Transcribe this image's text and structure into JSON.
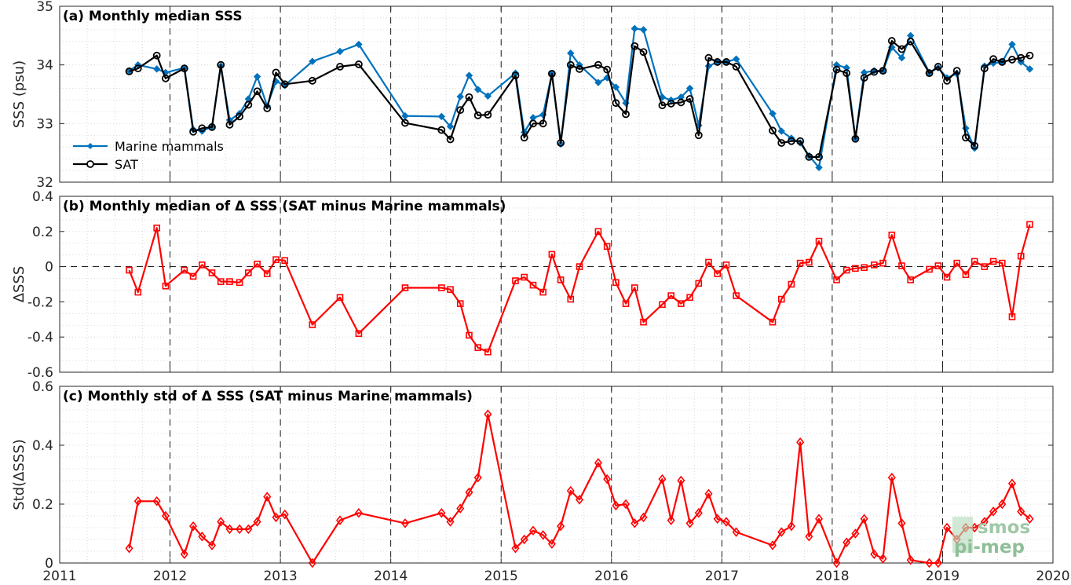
{
  "chart_data": [
    {
      "type": "line",
      "title": "(a) Monthly median SSS",
      "ylabel": "SSS (psu)",
      "xlabel": "",
      "xlim": [
        2011,
        2020
      ],
      "ylim": [
        32,
        35
      ],
      "x_ticks": [
        "2011",
        "2012",
        "2013",
        "2014",
        "2015",
        "2016",
        "2017",
        "2018",
        "2019",
        "2020"
      ],
      "y_ticks": [
        "32",
        "33",
        "34",
        "35"
      ],
      "grid": "dotted minor grid, dashed vertical lines at year boundaries",
      "legend_position": "lower-left",
      "series": [
        {
          "name": "Marine mammals",
          "color": "#0072bd",
          "marker": "diamond-filled",
          "x": [
            2011.63,
            2011.71,
            2011.88,
            2011.96,
            2012.13,
            2012.21,
            2012.29,
            2012.38,
            2012.46,
            2012.54,
            2012.63,
            2012.71,
            2012.79,
            2012.88,
            2012.96,
            2013.04,
            2013.29,
            2013.54,
            2013.71,
            2014.13,
            2014.46,
            2014.54,
            2014.63,
            2014.71,
            2014.79,
            2014.88,
            2015.13,
            2015.21,
            2015.29,
            2015.38,
            2015.46,
            2015.54,
            2015.63,
            2015.71,
            2015.88,
            2015.96,
            2016.04,
            2016.13,
            2016.21,
            2016.29,
            2016.46,
            2016.54,
            2016.63,
            2016.71,
            2016.79,
            2016.88,
            2016.96,
            2017.04,
            2017.13,
            2017.46,
            2017.54,
            2017.63,
            2017.71,
            2017.79,
            2017.88,
            2018.04,
            2018.13,
            2018.21,
            2018.29,
            2018.38,
            2018.46,
            2018.54,
            2018.63,
            2018.71,
            2018.88,
            2018.96,
            2019.04,
            2019.13,
            2019.21,
            2019.29,
            2019.38,
            2019.46,
            2019.54,
            2019.63,
            2019.71,
            2019.79
          ],
          "y": [
            33.9,
            34.0,
            33.93,
            33.87,
            33.95,
            32.9,
            32.87,
            32.95,
            33.98,
            33.06,
            33.17,
            33.42,
            33.8,
            33.3,
            33.72,
            33.65,
            34.06,
            34.23,
            34.35,
            33.13,
            33.12,
            32.95,
            33.46,
            33.82,
            33.58,
            33.47,
            33.86,
            32.85,
            33.1,
            33.15,
            33.85,
            32.65,
            34.2,
            34.0,
            33.7,
            33.78,
            33.62,
            33.35,
            34.62,
            34.6,
            33.45,
            33.4,
            33.45,
            33.6,
            32.97,
            33.98,
            34.05,
            34.05,
            34.1,
            33.17,
            32.87,
            32.75,
            32.67,
            32.45,
            32.25,
            34.0,
            33.95,
            32.75,
            33.87,
            33.9,
            33.9,
            34.3,
            34.12,
            34.5,
            33.87,
            33.95,
            33.78,
            33.85,
            32.92,
            32.58,
            33.98,
            34.03,
            34.05,
            34.35,
            34.05,
            33.93
          ]
        },
        {
          "name": "SAT",
          "color": "#000000",
          "marker": "circle-open",
          "x": [
            2011.63,
            2011.71,
            2011.88,
            2011.96,
            2012.13,
            2012.21,
            2012.29,
            2012.38,
            2012.46,
            2012.54,
            2012.63,
            2012.71,
            2012.79,
            2012.88,
            2012.96,
            2013.04,
            2013.29,
            2013.54,
            2013.71,
            2014.13,
            2014.46,
            2014.54,
            2014.63,
            2014.71,
            2014.79,
            2014.88,
            2015.13,
            2015.21,
            2015.29,
            2015.38,
            2015.46,
            2015.54,
            2015.63,
            2015.71,
            2015.88,
            2015.96,
            2016.04,
            2016.13,
            2016.21,
            2016.29,
            2016.46,
            2016.54,
            2016.63,
            2016.71,
            2016.79,
            2016.88,
            2016.96,
            2017.04,
            2017.13,
            2017.46,
            2017.54,
            2017.63,
            2017.71,
            2017.79,
            2017.88,
            2018.04,
            2018.13,
            2018.21,
            2018.29,
            2018.38,
            2018.46,
            2018.54,
            2018.63,
            2018.71,
            2018.88,
            2018.96,
            2019.04,
            2019.13,
            2019.21,
            2019.29,
            2019.38,
            2019.46,
            2019.54,
            2019.63,
            2019.71,
            2019.79
          ],
          "y": [
            33.89,
            33.94,
            34.16,
            33.77,
            33.94,
            32.86,
            32.92,
            32.94,
            34.0,
            32.98,
            33.12,
            33.32,
            33.55,
            33.26,
            33.87,
            33.67,
            33.73,
            33.97,
            34.01,
            33.01,
            32.89,
            32.73,
            33.23,
            33.45,
            33.14,
            33.15,
            33.82,
            32.76,
            33.0,
            33.0,
            33.85,
            32.67,
            34.0,
            33.93,
            34.0,
            33.92,
            33.35,
            33.16,
            34.32,
            34.22,
            33.31,
            33.34,
            33.36,
            33.42,
            32.8,
            34.12,
            34.05,
            34.05,
            33.97,
            32.88,
            32.67,
            32.7,
            32.7,
            32.43,
            32.43,
            33.92,
            33.86,
            32.74,
            33.78,
            33.88,
            33.9,
            34.41,
            34.27,
            34.4,
            33.86,
            33.97,
            33.73,
            33.9,
            32.76,
            32.62,
            33.94,
            34.1,
            34.05,
            34.09,
            34.12,
            34.16
          ]
        }
      ]
    },
    {
      "type": "line",
      "title": "(b) Monthly median of Δ SSS (SAT minus Marine mammals)",
      "ylabel": "ΔSSS",
      "xlabel": "",
      "xlim": [
        2011,
        2020
      ],
      "ylim": [
        -0.6,
        0.4
      ],
      "y_ticks": [
        "-0.6",
        "-0.4",
        "-0.2",
        "0",
        "0.2",
        "0.4"
      ],
      "reference_line": 0,
      "series": [
        {
          "name": "",
          "color": "#ff0000",
          "marker": "square-open",
          "x": [
            2011.63,
            2011.71,
            2011.88,
            2011.96,
            2012.13,
            2012.21,
            2012.29,
            2012.38,
            2012.46,
            2012.54,
            2012.63,
            2012.71,
            2012.79,
            2012.88,
            2012.96,
            2013.04,
            2013.29,
            2013.54,
            2013.71,
            2014.13,
            2014.46,
            2014.54,
            2014.63,
            2014.71,
            2014.79,
            2014.88,
            2015.13,
            2015.21,
            2015.29,
            2015.38,
            2015.46,
            2015.54,
            2015.63,
            2015.71,
            2015.88,
            2015.96,
            2016.04,
            2016.13,
            2016.21,
            2016.29,
            2016.46,
            2016.54,
            2016.63,
            2016.71,
            2016.79,
            2016.88,
            2016.96,
            2017.04,
            2017.13,
            2017.46,
            2017.54,
            2017.63,
            2017.71,
            2017.79,
            2017.88,
            2018.04,
            2018.13,
            2018.21,
            2018.29,
            2018.38,
            2018.46,
            2018.54,
            2018.63,
            2018.71,
            2018.88,
            2018.96,
            2019.04,
            2019.13,
            2019.21,
            2019.29,
            2019.38,
            2019.46,
            2019.54,
            2019.63,
            2019.71,
            2019.79
          ],
          "y": [
            -0.02,
            -0.145,
            0.22,
            -0.11,
            -0.02,
            -0.055,
            0.01,
            -0.035,
            -0.085,
            -0.085,
            -0.09,
            -0.035,
            0.015,
            -0.04,
            0.04,
            0.035,
            -0.33,
            -0.175,
            -0.38,
            -0.12,
            -0.12,
            -0.13,
            -0.21,
            -0.39,
            -0.46,
            -0.485,
            -0.08,
            -0.06,
            -0.105,
            -0.145,
            0.07,
            -0.075,
            -0.185,
            0.0,
            0.2,
            0.115,
            -0.09,
            -0.21,
            -0.12,
            -0.315,
            -0.215,
            -0.165,
            -0.21,
            -0.175,
            -0.095,
            0.025,
            -0.04,
            0.01,
            -0.165,
            -0.315,
            -0.185,
            -0.1,
            0.02,
            0.025,
            0.145,
            -0.075,
            -0.02,
            -0.01,
            -0.005,
            0.01,
            0.02,
            0.18,
            0.005,
            -0.075,
            -0.015,
            0.005,
            -0.06,
            0.02,
            -0.045,
            0.03,
            0.0,
            0.03,
            0.02,
            -0.285,
            0.06,
            0.24
          ]
        }
      ]
    },
    {
      "type": "line",
      "title": "(c) Monthly std of Δ SSS (SAT minus Marine mammals)",
      "ylabel": "Std(ΔSSS)",
      "xlabel": "",
      "xlim": [
        2011,
        2020
      ],
      "ylim": [
        0,
        0.6
      ],
      "y_ticks": [
        "0",
        "0.2",
        "0.4",
        "0.6"
      ],
      "series": [
        {
          "name": "",
          "color": "#ff0000",
          "marker": "diamond-open",
          "x": [
            2011.63,
            2011.71,
            2011.88,
            2011.96,
            2012.13,
            2012.21,
            2012.29,
            2012.38,
            2012.46,
            2012.54,
            2012.63,
            2012.71,
            2012.79,
            2012.88,
            2012.96,
            2013.04,
            2013.29,
            2013.54,
            2013.71,
            2014.13,
            2014.46,
            2014.54,
            2014.63,
            2014.71,
            2014.79,
            2014.88,
            2015.13,
            2015.21,
            2015.29,
            2015.38,
            2015.46,
            2015.54,
            2015.63,
            2015.71,
            2015.88,
            2015.96,
            2016.04,
            2016.13,
            2016.21,
            2016.29,
            2016.46,
            2016.54,
            2016.63,
            2016.71,
            2016.79,
            2016.88,
            2016.96,
            2017.04,
            2017.13,
            2017.46,
            2017.54,
            2017.63,
            2017.71,
            2017.79,
            2017.88,
            2018.04,
            2018.13,
            2018.21,
            2018.29,
            2018.38,
            2018.46,
            2018.54,
            2018.63,
            2018.71,
            2018.88,
            2018.96,
            2019.04,
            2019.13,
            2019.21,
            2019.29,
            2019.38,
            2019.46,
            2019.54,
            2019.63,
            2019.71,
            2019.79
          ],
          "y": [
            0.05,
            0.21,
            0.21,
            0.16,
            0.03,
            0.125,
            0.09,
            0.06,
            0.14,
            0.115,
            0.115,
            0.115,
            0.14,
            0.225,
            0.155,
            0.165,
            0.0,
            0.145,
            0.17,
            0.135,
            0.17,
            0.14,
            0.185,
            0.24,
            0.29,
            0.505,
            0.05,
            0.08,
            0.11,
            0.095,
            0.065,
            0.125,
            0.245,
            0.215,
            0.34,
            0.285,
            0.195,
            0.2,
            0.135,
            0.155,
            0.285,
            0.145,
            0.28,
            0.135,
            0.17,
            0.235,
            0.15,
            0.14,
            0.105,
            0.06,
            0.105,
            0.125,
            0.41,
            0.09,
            0.15,
            0.0,
            0.07,
            0.1,
            0.15,
            0.03,
            0.015,
            0.29,
            0.135,
            0.01,
            0.0,
            0.0,
            0.12,
            0.08,
            0.12,
            0.12,
            0.14,
            0.175,
            0.2,
            0.27,
            0.175,
            0.15
          ]
        }
      ]
    }
  ],
  "watermark": {
    "line1": "smos",
    "line2": "pi-mep",
    "color": "#8fbf98"
  }
}
